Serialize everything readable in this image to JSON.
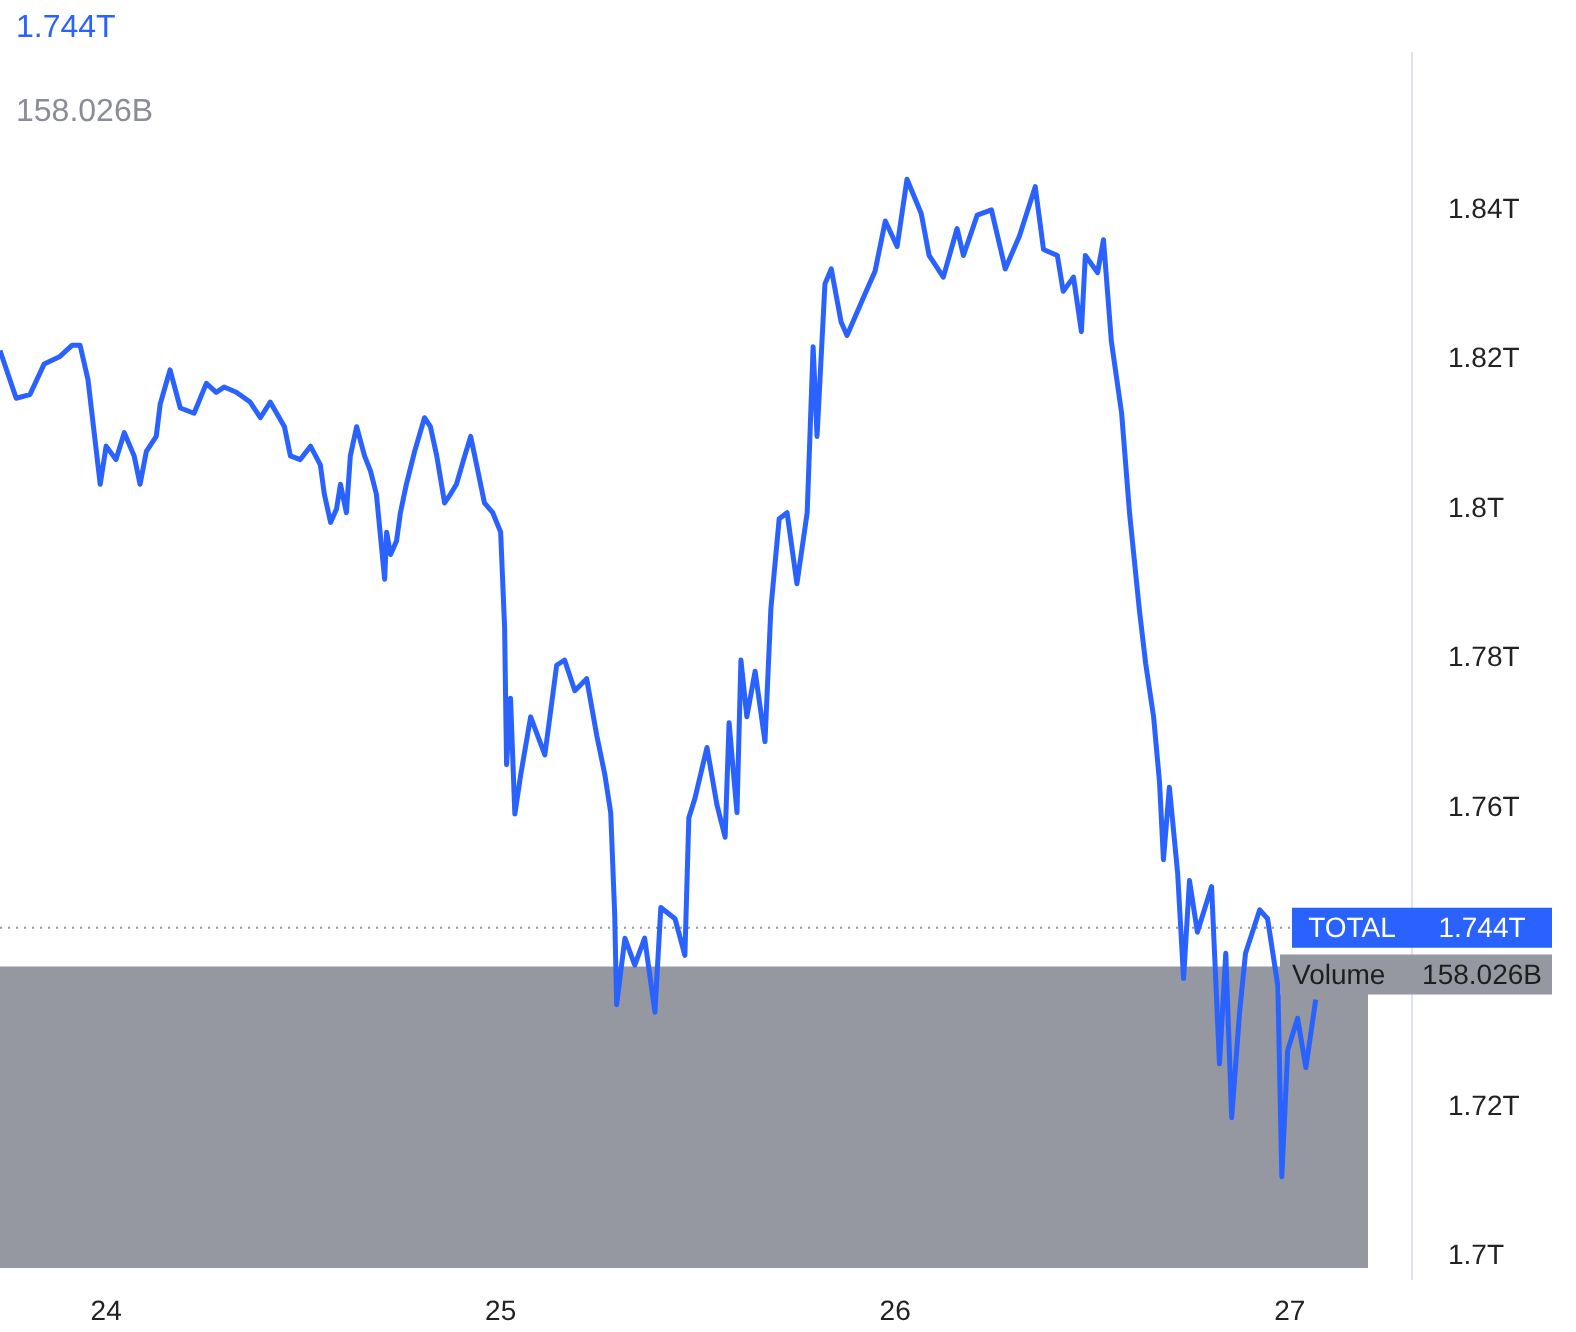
{
  "chart_data": {
    "type": "line",
    "x": [
      23.731,
      23.772,
      23.807,
      23.843,
      23.883,
      23.914,
      23.934,
      23.954,
      23.985,
      24.0,
      24.025,
      24.046,
      24.071,
      24.086,
      24.102,
      24.127,
      24.137,
      24.162,
      24.188,
      24.223,
      24.254,
      24.279,
      24.299,
      24.33,
      24.365,
      24.391,
      24.416,
      24.452,
      24.467,
      24.492,
      24.518,
      24.543,
      24.553,
      24.569,
      24.584,
      24.594,
      24.609,
      24.619,
      24.635,
      24.655,
      24.67,
      24.685,
      24.706,
      24.711,
      24.721,
      24.736,
      24.746,
      24.761,
      24.782,
      24.807,
      24.822,
      24.838,
      24.858,
      24.873,
      24.888,
      24.909,
      24.924,
      24.939,
      24.959,
      24.98,
      25.0,
      25.01,
      25.015,
      25.025,
      25.036,
      25.051,
      25.076,
      25.112,
      25.142,
      25.162,
      25.188,
      25.218,
      25.244,
      25.264,
      25.279,
      25.289,
      25.294,
      25.315,
      25.34,
      25.365,
      25.391,
      25.406,
      25.442,
      25.467,
      25.477,
      25.492,
      25.523,
      25.548,
      25.569,
      25.579,
      25.599,
      25.609,
      25.624,
      25.645,
      25.67,
      25.685,
      25.706,
      25.726,
      25.751,
      25.777,
      25.792,
      25.802,
      25.822,
      25.838,
      25.863,
      25.878,
      25.924,
      25.949,
      25.975,
      26.005,
      26.03,
      26.066,
      26.086,
      26.122,
      26.157,
      26.173,
      26.208,
      26.244,
      26.279,
      26.315,
      26.355,
      26.376,
      26.411,
      26.426,
      26.452,
      26.472,
      26.482,
      26.513,
      26.528,
      26.548,
      26.574,
      26.594,
      26.619,
      26.635,
      26.655,
      26.67,
      26.68,
      26.695,
      26.716,
      26.731,
      26.746,
      26.766,
      26.802,
      26.822,
      26.838,
      26.853,
      26.873,
      26.888,
      26.924,
      26.944,
      26.97,
      26.98,
      26.995,
      27.02,
      27.041,
      27.066
    ],
    "series": [
      {
        "color": "#2962ff",
        "values": [
          1.8212,
          1.8148,
          1.8153,
          1.8194,
          1.8204,
          1.8219,
          1.8219,
          1.8173,
          1.8033,
          1.8084,
          1.8066,
          1.8102,
          1.8071,
          1.8033,
          1.8077,
          1.8097,
          1.814,
          1.8186,
          1.8135,
          1.8128,
          1.8168,
          1.8156,
          1.8163,
          1.8156,
          1.8143,
          1.8122,
          1.8143,
          1.811,
          1.8071,
          1.8066,
          1.8084,
          1.8059,
          1.802,
          1.7982,
          1.8,
          1.8033,
          1.7995,
          1.8071,
          1.811,
          1.8071,
          1.8051,
          1.802,
          1.7906,
          1.7969,
          1.7939,
          1.7957,
          1.7995,
          1.8033,
          1.8077,
          1.8122,
          1.811,
          1.8071,
          1.8008,
          1.802,
          1.8033,
          1.8071,
          1.8097,
          1.8059,
          1.8008,
          1.7995,
          1.7969,
          1.7842,
          1.7658,
          1.7747,
          1.7592,
          1.7645,
          1.7722,
          1.7671,
          1.7791,
          1.7798,
          1.7757,
          1.7773,
          1.7696,
          1.7645,
          1.7594,
          1.7459,
          1.7337,
          1.7426,
          1.739,
          1.7426,
          1.7327,
          1.7467,
          1.7452,
          1.7403,
          1.7587,
          1.7612,
          1.7681,
          1.7605,
          1.7561,
          1.7714,
          1.7594,
          1.7798,
          1.7722,
          1.7783,
          1.7689,
          1.7867,
          1.7987,
          1.7995,
          1.79,
          1.7995,
          1.8217,
          1.8097,
          1.8301,
          1.8321,
          1.825,
          1.8232,
          1.8288,
          1.8318,
          1.8385,
          1.8351,
          1.8441,
          1.8395,
          1.8339,
          1.831,
          1.8375,
          1.8339,
          1.8393,
          1.84,
          1.8321,
          1.8365,
          1.8431,
          1.8347,
          1.8339,
          1.8291,
          1.831,
          1.8237,
          1.8339,
          1.8316,
          1.836,
          1.8224,
          1.8128,
          1.7995,
          1.7865,
          1.7793,
          1.7722,
          1.7635,
          1.7531,
          1.7628,
          1.7513,
          1.7372,
          1.7503,
          1.7434,
          1.7495,
          1.7258,
          1.7406,
          1.7186,
          1.7327,
          1.7406,
          1.7464,
          1.7452,
          1.7362,
          1.7107,
          1.7276,
          1.7319,
          1.7253,
          1.7344
        ]
      }
    ],
    "xlim": [
      23.731,
      27.31
    ],
    "xticks": [
      24,
      25,
      26,
      27
    ],
    "ylim": [
      1.697,
      1.861
    ],
    "yticks": [
      {
        "value": 1.7,
        "label": "1.7T"
      },
      {
        "value": 1.72,
        "label": "1.72T"
      },
      {
        "value": 1.76,
        "label": "1.76T"
      },
      {
        "value": 1.78,
        "label": "1.78T"
      },
      {
        "value": 1.8,
        "label": "1.8T"
      },
      {
        "value": 1.82,
        "label": "1.82T"
      },
      {
        "value": 1.84,
        "label": "1.84T"
      }
    ],
    "ref_lines": [
      {
        "axis": "y",
        "value": 1.744,
        "label": "TOTAL",
        "line_style": "dotted"
      }
    ],
    "bands": [
      {
        "axis": "y",
        "from": 1.6985,
        "to": 1.7388,
        "label": "Volume",
        "color": "#9598a1"
      }
    ],
    "annotations": [
      "1.744T",
      "158.026B",
      "1.744T",
      "158.026B"
    ],
    "marker": "none",
    "line_style": "solid",
    "legend": false
  }
}
